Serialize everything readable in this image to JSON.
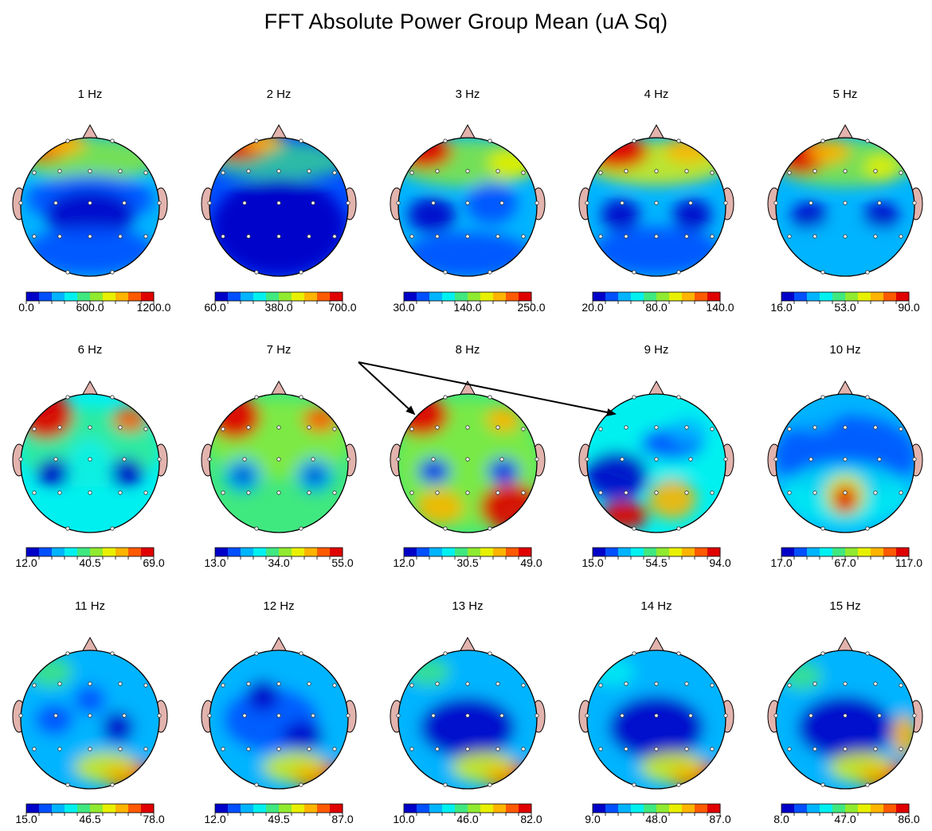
{
  "title": "FFT Absolute Power Group Mean  (uA Sq)",
  "maps": [
    {
      "freq": "1 Hz",
      "scale": [
        "0.0",
        "600.0",
        "1200.0"
      ]
    },
    {
      "freq": "2 Hz",
      "scale": [
        "60.0",
        "380.0",
        "700.0"
      ]
    },
    {
      "freq": "3 Hz",
      "scale": [
        "30.0",
        "140.0",
        "250.0"
      ]
    },
    {
      "freq": "4 Hz",
      "scale": [
        "20.0",
        "80.0",
        "140.0"
      ]
    },
    {
      "freq": "5 Hz",
      "scale": [
        "16.0",
        "53.0",
        "90.0"
      ]
    },
    {
      "freq": "6 Hz",
      "scale": [
        "12.0",
        "40.5",
        "69.0"
      ]
    },
    {
      "freq": "7 Hz",
      "scale": [
        "13.0",
        "34.0",
        "55.0"
      ]
    },
    {
      "freq": "8 Hz",
      "scale": [
        "12.0",
        "30.5",
        "49.0"
      ]
    },
    {
      "freq": "9 Hz",
      "scale": [
        "15.0",
        "54.5",
        "94.0"
      ]
    },
    {
      "freq": "10 Hz",
      "scale": [
        "17.0",
        "67.0",
        "117.0"
      ]
    },
    {
      "freq": "11 Hz",
      "scale": [
        "15.0",
        "46.5",
        "78.0"
      ]
    },
    {
      "freq": "12 Hz",
      "scale": [
        "12.0",
        "49.5",
        "87.0"
      ]
    },
    {
      "freq": "13 Hz",
      "scale": [
        "10.0",
        "46.0",
        "82.0"
      ]
    },
    {
      "freq": "14 Hz",
      "scale": [
        "9.0",
        "48.0",
        "87.0"
      ]
    },
    {
      "freq": "15 Hz",
      "scale": [
        "8.0",
        "47.0",
        "86.0"
      ]
    }
  ],
  "colors": {
    "scale": [
      "#0000c8",
      "#0050ff",
      "#00b4ff",
      "#00f0f0",
      "#40e880",
      "#90ea30",
      "#e8f000",
      "#ffb400",
      "#ff5a00",
      "#e00000"
    ],
    "head_outline": "#000000",
    "nose_ear": "#e3b3ad",
    "electrode": "#ffffff",
    "arrow": "#000000"
  }
}
